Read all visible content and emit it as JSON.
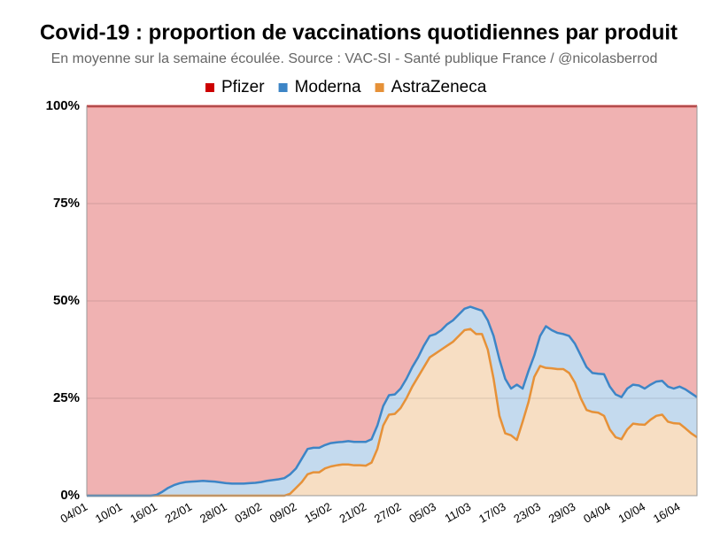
{
  "chart_data": {
    "type": "stacked_area",
    "title": "Covid-19 : proportion de vaccinations quotidiennes par produit",
    "subtitle": "En moyenne sur la semaine écoulée. Source : VAC-SI - Santé publique France / @nicolasberrod",
    "legend": "top",
    "grid": true,
    "categories": [
      "04/01",
      null,
      null,
      null,
      null,
      null,
      "10/01",
      null,
      null,
      null,
      null,
      null,
      "16/01",
      null,
      null,
      null,
      null,
      null,
      "22/01",
      null,
      null,
      null,
      null,
      null,
      "28/01",
      null,
      null,
      null,
      null,
      null,
      "03/02",
      null,
      null,
      null,
      null,
      null,
      "09/02",
      null,
      null,
      null,
      null,
      null,
      "15/02",
      null,
      null,
      null,
      null,
      null,
      "21/02",
      null,
      null,
      null,
      null,
      null,
      "27/02",
      null,
      null,
      null,
      null,
      null,
      "05/03",
      null,
      null,
      null,
      null,
      null,
      "11/03",
      null,
      null,
      null,
      null,
      null,
      "17/03",
      null,
      null,
      null,
      null,
      null,
      "23/03",
      null,
      null,
      null,
      null,
      null,
      "29/03",
      null,
      null,
      null,
      null,
      null,
      "04/04",
      null,
      null,
      null,
      null,
      null,
      "10/04",
      null,
      null,
      null,
      null,
      null,
      "16/04",
      null,
      null,
      null
    ],
    "ylim": [
      0,
      100
    ],
    "yticks": [
      {
        "value": 0,
        "label": "0%"
      },
      {
        "value": 25,
        "label": "25%"
      },
      {
        "value": 50,
        "label": "50%"
      },
      {
        "value": 75,
        "label": "75%"
      },
      {
        "value": 100,
        "label": "100%"
      }
    ],
    "series": [
      {
        "name": "Pfizer",
        "color": "#cc0000",
        "values": [
          100,
          100,
          100,
          100,
          100,
          100,
          100,
          100,
          100,
          100,
          100,
          100,
          99.8,
          99,
          98,
          97.3,
          96.8,
          96.5,
          96.4,
          96.3,
          96.2,
          96.3,
          96.4,
          96.6,
          96.8,
          96.9,
          96.9,
          96.9,
          96.8,
          96.7,
          96.5,
          96.2,
          96,
          95.8,
          95.5,
          94.5,
          93,
          90.5,
          88,
          87.7,
          87.7,
          87,
          86.5,
          86.3,
          86.2,
          86,
          86.2,
          86.2,
          86.2,
          85.5,
          82,
          77,
          74.2,
          74,
          72.5,
          70,
          67,
          64.5,
          61.5,
          59,
          58.5,
          57.5,
          56,
          55,
          53.5,
          52,
          51.5,
          52,
          52.5,
          55,
          59,
          65,
          70,
          72.5,
          71.5,
          72.5,
          68,
          64,
          59,
          56.5,
          57.5,
          58.2,
          58.5,
          59,
          61,
          64,
          67,
          68.5,
          68.7,
          68.8,
          72,
          74,
          74.7,
          72.5,
          71.5,
          71.7,
          72.5,
          71.5,
          70.7,
          70.5,
          72,
          72.5,
          72,
          72.7,
          73.7,
          74.7
        ]
      },
      {
        "name": "Moderna",
        "color": "#3d85c6",
        "values": [
          0,
          0,
          0,
          0,
          0,
          0,
          0,
          0,
          0,
          0,
          0,
          0,
          0.2,
          1,
          2,
          2.7,
          3.2,
          3.5,
          3.6,
          3.7,
          3.8,
          3.7,
          3.6,
          3.4,
          3.2,
          3.1,
          3.1,
          3.1,
          3.2,
          3.3,
          3.5,
          3.8,
          4,
          4.2,
          4.5,
          5,
          5,
          6,
          6.5,
          6.3,
          6.3,
          6,
          6,
          5.9,
          5.8,
          6,
          6,
          6,
          6.1,
          6,
          6,
          5,
          5,
          5,
          5,
          5,
          5,
          5,
          5.5,
          5.5,
          5,
          5,
          5.5,
          5.5,
          5.5,
          5.5,
          5.7,
          6.5,
          6,
          7.5,
          11,
          14.5,
          14,
          12,
          14.2,
          8.5,
          8,
          5.5,
          7.7,
          10.7,
          9.8,
          9.3,
          9,
          9.5,
          10,
          11,
          11,
          10,
          10,
          10.7,
          11,
          11,
          10.8,
          10.5,
          10,
          10,
          9.3,
          9,
          8.8,
          8.7,
          9,
          8.9,
          9.5,
          10,
          10.3,
          10.3
        ]
      },
      {
        "name": "AstraZeneca",
        "color": "#e69138",
        "values": [
          0,
          0,
          0,
          0,
          0,
          0,
          0,
          0,
          0,
          0,
          0,
          0,
          0,
          0,
          0,
          0,
          0,
          0,
          0,
          0,
          0,
          0,
          0,
          0,
          0,
          0,
          0,
          0,
          0,
          0,
          0,
          0,
          0,
          0,
          0,
          0.5,
          2,
          3.5,
          5.5,
          6,
          6,
          7,
          7.5,
          7.8,
          8,
          8,
          7.8,
          7.8,
          7.7,
          8.5,
          12,
          18,
          20.8,
          21,
          22.5,
          25,
          28,
          30.5,
          33,
          35.5,
          36.5,
          37.5,
          38.5,
          39.5,
          41,
          42.5,
          42.8,
          41.5,
          41.5,
          37.5,
          30,
          20.5,
          16,
          15.5,
          14.3,
          19,
          24,
          30.5,
          33.3,
          32.8,
          32.7,
          32.5,
          32.5,
          31.5,
          29,
          25,
          22,
          21.5,
          21.3,
          20.5,
          17,
          15,
          14.5,
          17,
          18.5,
          18.3,
          18.2,
          19.5,
          20.5,
          20.8,
          19,
          18.6,
          18.5,
          17.3,
          16,
          15
        ]
      }
    ]
  }
}
